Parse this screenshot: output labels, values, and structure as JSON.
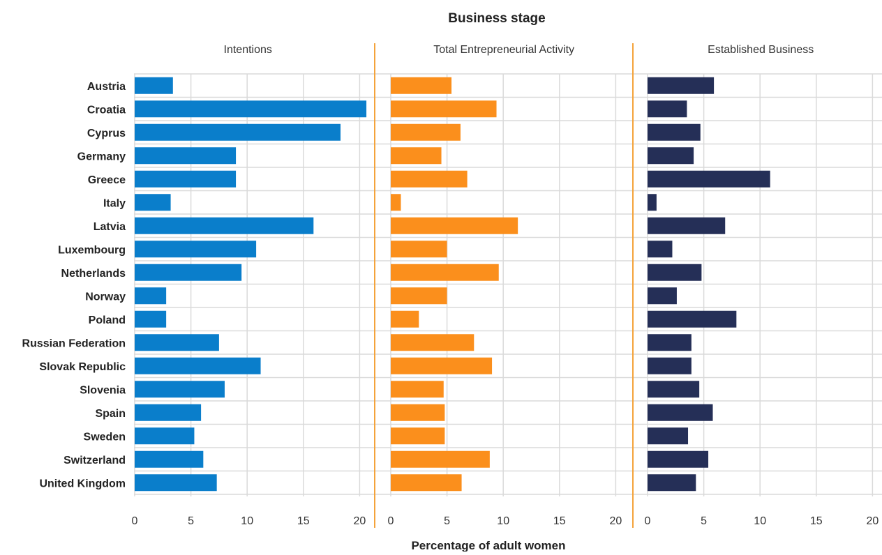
{
  "chart_data": {
    "type": "bar",
    "orientation": "horizontal",
    "title": "Business stage",
    "xlabel": "Percentage of adult women",
    "categories": [
      "Austria",
      "Croatia",
      "Cyprus",
      "Germany",
      "Greece",
      "Italy",
      "Latvia",
      "Luxembourg",
      "Netherlands",
      "Norway",
      "Poland",
      "Russian Federation",
      "Slovak Republic",
      "Slovenia",
      "Spain",
      "Sweden",
      "Switzerland",
      "United Kingdom"
    ],
    "xlim": [
      0,
      20
    ],
    "xticks": [
      "0",
      "5",
      "10",
      "15",
      "20"
    ],
    "grid": true,
    "series": [
      {
        "name": "Intentions",
        "color": "#0a7ecb",
        "values": [
          3.4,
          20.6,
          18.3,
          9.0,
          9.0,
          3.2,
          15.9,
          10.8,
          9.5,
          2.8,
          2.8,
          7.5,
          11.2,
          8.0,
          5.9,
          5.3,
          6.1,
          7.3
        ]
      },
      {
        "name": "Total Entrepreneurial Activity",
        "color": "#fb8f1c",
        "values": [
          5.4,
          9.4,
          6.2,
          4.5,
          6.8,
          0.9,
          11.3,
          5.0,
          9.6,
          5.0,
          2.5,
          7.4,
          9.0,
          4.7,
          4.8,
          4.8,
          8.8,
          6.3
        ]
      },
      {
        "name": "Established Business",
        "color": "#252f57",
        "values": [
          5.9,
          3.5,
          4.7,
          4.1,
          10.9,
          0.8,
          6.9,
          2.2,
          4.8,
          2.6,
          7.9,
          3.9,
          3.9,
          4.6,
          5.8,
          3.6,
          5.4,
          4.3
        ]
      }
    ]
  },
  "colors": {
    "separator": "#f4a33b",
    "grid": "#dadada"
  }
}
